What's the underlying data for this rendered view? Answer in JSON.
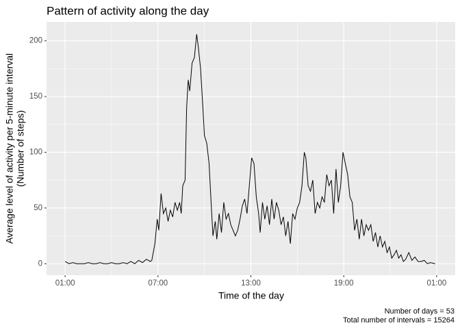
{
  "chart_data": {
    "type": "line",
    "title": "Pattern of activity along the day",
    "x_label": "Time of the day",
    "y_label": [
      "Average level of activity per 5-minute interval",
      "(Number of steps)"
    ],
    "caption": [
      "Number of days = 53",
      "Total number of intervals = 15264"
    ],
    "color": "#000000",
    "grid": true,
    "x": [
      1.0,
      1.25,
      1.5,
      1.75,
      2.0,
      2.25,
      2.5,
      2.75,
      3.0,
      3.25,
      3.5,
      3.75,
      4.0,
      4.25,
      4.5,
      4.75,
      5.0,
      5.25,
      5.5,
      5.75,
      6.0,
      6.25,
      6.5,
      6.6,
      6.8,
      6.95,
      7.05,
      7.2,
      7.35,
      7.5,
      7.65,
      7.8,
      7.95,
      8.1,
      8.25,
      8.4,
      8.5,
      8.6,
      8.75,
      8.85,
      8.95,
      9.05,
      9.2,
      9.35,
      9.5,
      9.6,
      9.75,
      9.9,
      10.0,
      10.15,
      10.3,
      10.45,
      10.55,
      10.7,
      10.8,
      10.95,
      11.1,
      11.25,
      11.4,
      11.55,
      11.7,
      11.85,
      12.0,
      12.15,
      12.3,
      12.45,
      12.6,
      12.75,
      12.9,
      13.05,
      13.2,
      13.35,
      13.5,
      13.6,
      13.75,
      13.9,
      14.05,
      14.2,
      14.35,
      14.5,
      14.65,
      14.8,
      14.95,
      15.1,
      15.25,
      15.4,
      15.55,
      15.7,
      15.85,
      16.0,
      16.15,
      16.3,
      16.45,
      16.55,
      16.7,
      16.85,
      17.0,
      17.15,
      17.3,
      17.45,
      17.6,
      17.75,
      17.9,
      18.05,
      18.2,
      18.35,
      18.5,
      18.65,
      18.8,
      18.95,
      19.1,
      19.25,
      19.4,
      19.55,
      19.7,
      19.85,
      20.0,
      20.15,
      20.3,
      20.45,
      20.6,
      20.75,
      20.9,
      21.05,
      21.2,
      21.35,
      21.5,
      21.65,
      21.8,
      21.95,
      22.1,
      22.25,
      22.4,
      22.55,
      22.7,
      22.85,
      23.0,
      23.2,
      23.4,
      23.6,
      23.8,
      24.0,
      24.2,
      24.4,
      24.6,
      24.9
    ],
    "values": [
      2,
      0,
      1,
      0,
      0,
      0,
      1,
      0,
      0,
      1,
      0,
      0,
      1,
      0,
      0,
      1,
      0,
      2,
      0,
      3,
      1,
      4,
      2,
      3,
      18,
      40,
      30,
      63,
      45,
      50,
      38,
      48,
      42,
      55,
      48,
      55,
      45,
      70,
      75,
      140,
      165,
      155,
      180,
      185,
      206,
      195,
      175,
      140,
      115,
      108,
      90,
      50,
      25,
      38,
      22,
      45,
      28,
      55,
      40,
      45,
      35,
      30,
      25,
      30,
      40,
      52,
      58,
      45,
      70,
      95,
      90,
      60,
      45,
      28,
      55,
      40,
      52,
      35,
      58,
      40,
      55,
      48,
      35,
      42,
      25,
      38,
      18,
      45,
      40,
      50,
      55,
      70,
      100,
      95,
      70,
      65,
      75,
      45,
      55,
      50,
      60,
      55,
      80,
      70,
      75,
      45,
      85,
      55,
      70,
      100,
      90,
      80,
      60,
      55,
      30,
      40,
      22,
      40,
      25,
      35,
      30,
      35,
      20,
      28,
      15,
      25,
      15,
      20,
      10,
      15,
      5,
      8,
      12,
      5,
      8,
      2,
      4,
      10,
      3,
      6,
      2,
      2,
      3,
      0,
      1,
      0
    ],
    "xlim": [
      -0.2,
      26.2
    ],
    "xticks": [
      {
        "value": 1,
        "label": "01:00"
      },
      {
        "value": 7,
        "label": "07:00"
      },
      {
        "value": 13,
        "label": "13:00"
      },
      {
        "value": 19,
        "label": "19:00"
      },
      {
        "value": 25,
        "label": "01:00"
      }
    ],
    "ylim": [
      -10.3,
      217
    ],
    "yticks": [
      0,
      50,
      100,
      150,
      200
    ]
  }
}
